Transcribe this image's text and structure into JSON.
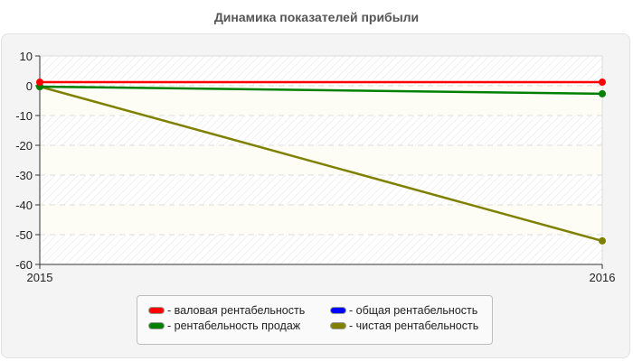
{
  "chart_data": {
    "type": "line",
    "title": "Динамика показателей прибыли",
    "xlabel": "",
    "ylabel": "",
    "x": [
      "2015",
      "2016"
    ],
    "ylim": [
      -60,
      10
    ],
    "yticks": [
      10,
      0,
      -10,
      -20,
      -30,
      -40,
      -50,
      -60
    ],
    "grid": true,
    "legend_position": "bottom",
    "series": [
      {
        "name": "валовая рентабельность",
        "color": "#ff0000",
        "values": [
          1.2,
          1.2
        ]
      },
      {
        "name": "общая рентабельность",
        "color": "#0000ff",
        "values": [
          null,
          null
        ]
      },
      {
        "name": "рентабельность продаж",
        "color": "#008000",
        "values": [
          -0.3,
          -2.7
        ]
      },
      {
        "name": "чистая рентабельность",
        "color": "#808000",
        "values": [
          -0.3,
          -52.1
        ]
      }
    ]
  },
  "legend": {
    "items": [
      {
        "label": "- валовая рентабельность",
        "color": "#ff0000"
      },
      {
        "label": "- общая рентабельность",
        "color": "#0000ff"
      },
      {
        "label": "- рентабельность продаж",
        "color": "#008000"
      },
      {
        "label": "- чистая рентабельность",
        "color": "#808000"
      }
    ]
  },
  "axes": {
    "y_labels": [
      "10",
      "0",
      "-10",
      "-20",
      "-30",
      "-40",
      "-50",
      "-60"
    ],
    "x_labels": [
      "2015",
      "2016"
    ]
  }
}
